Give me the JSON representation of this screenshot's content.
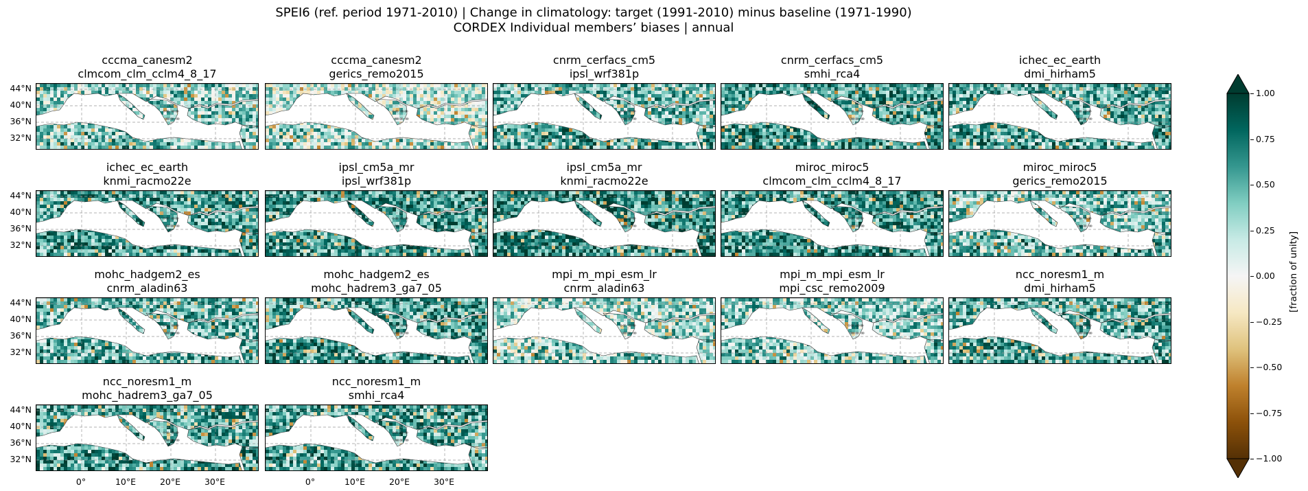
{
  "figure": {
    "title_line1": "SPEI6 (ref. period 1971-2010) | Change in climatology: target (1991-2010) minus baseline (1971-1990)",
    "title_line2": "CORDEX Individual members’ biases | annual"
  },
  "panels": [
    {
      "gcm": "cccma_canesm2",
      "rcm": "clmcom_clm_cclm4_8_17",
      "tone": 0.35
    },
    {
      "gcm": "cccma_canesm2",
      "rcm": "gerics_remo2015",
      "tone": 0.2
    },
    {
      "gcm": "cnrm_cerfacs_cm5",
      "rcm": "ipsl_wrf381p",
      "tone": 0.45
    },
    {
      "gcm": "cnrm_cerfacs_cm5",
      "rcm": "smhi_rca4",
      "tone": 0.6
    },
    {
      "gcm": "ichec_ec_earth",
      "rcm": "dmi_hirham5",
      "tone": 0.5
    },
    {
      "gcm": "ichec_ec_earth",
      "rcm": "knmi_racmo22e",
      "tone": 0.55
    },
    {
      "gcm": "ipsl_cm5a_mr",
      "rcm": "ipsl_wrf381p",
      "tone": 0.6
    },
    {
      "gcm": "ipsl_cm5a_mr",
      "rcm": "knmi_racmo22e",
      "tone": 0.65
    },
    {
      "gcm": "miroc_miroc5",
      "rcm": "clmcom_clm_cclm4_8_17",
      "tone": 0.6
    },
    {
      "gcm": "miroc_miroc5",
      "rcm": "gerics_remo2015",
      "tone": 0.4
    },
    {
      "gcm": "mohc_hadgem2_es",
      "rcm": "cnrm_aladin63",
      "tone": 0.45
    },
    {
      "gcm": "mohc_hadgem2_es",
      "rcm": "mohc_hadrem3_ga7_05",
      "tone": 0.55
    },
    {
      "gcm": "mpi_m_mpi_esm_lr",
      "rcm": "cnrm_aladin63",
      "tone": 0.3
    },
    {
      "gcm": "mpi_m_mpi_esm_lr",
      "rcm": "mpi_csc_remo2009",
      "tone": 0.35
    },
    {
      "gcm": "ncc_noresm1_m",
      "rcm": "dmi_hirham5",
      "tone": 0.5
    },
    {
      "gcm": "ncc_noresm1_m",
      "rcm": "mohc_hadrem3_ga7_05",
      "tone": 0.55
    },
    {
      "gcm": "ncc_noresm1_m",
      "rcm": "smhi_rca4",
      "tone": 0.55
    }
  ],
  "axes": {
    "lat_ticks": [
      "44°N",
      "40°N",
      "36°N",
      "32°N"
    ],
    "lon_ticks": [
      "0°",
      "10°E",
      "20°E",
      "30°E"
    ]
  },
  "colorbar": {
    "label": "[fraction of unity]",
    "ticks": [
      "1.00",
      "0.75",
      "0.50",
      "0.25",
      "0.00",
      "−0.25",
      "−0.50",
      "−0.75",
      "−1.00"
    ],
    "colormap": [
      "#543005",
      "#8c510a",
      "#bf812d",
      "#dfc27d",
      "#f6e8c3",
      "#f5f5f5",
      "#c7eae5",
      "#80cdc1",
      "#35978f",
      "#01665e",
      "#003c30"
    ],
    "range": [
      -1.0,
      1.0
    ]
  }
}
